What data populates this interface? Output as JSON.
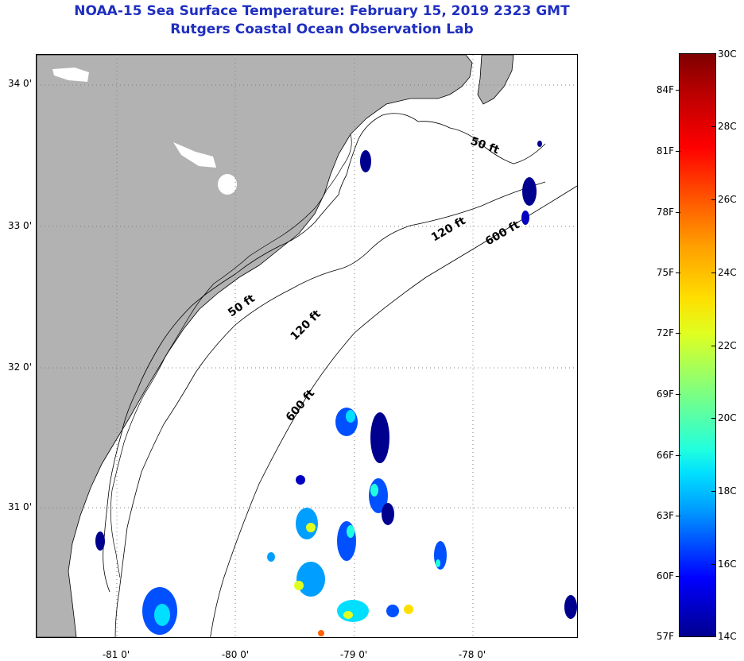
{
  "title": {
    "line1": "NOAA-15 Sea Surface Temperature:  February 15, 2019 2323 GMT",
    "line2": "Rutgers Coastal Ocean Observation Lab"
  },
  "colors": {
    "title": "#1f2fbf",
    "land": "#b2b2b2",
    "ocean": "#ffffff",
    "contour": "#000000",
    "grid": "#808080"
  },
  "latitude_labels": [
    "34 0'",
    "33 0'",
    "32 0'",
    "31 0'"
  ],
  "longitude_labels": [
    "-81 0'",
    "-80 0'",
    "-79 0'",
    "-78 0'"
  ],
  "contour_labels": [
    "50 ft",
    "120 ft",
    "600 ft",
    "50 ft",
    "120 ft",
    "600 ft"
  ],
  "colorbar": {
    "fahrenheit": [
      "84F",
      "81F",
      "78F",
      "75F",
      "72F",
      "69F",
      "66F",
      "63F",
      "60F",
      "57F"
    ],
    "celsius": [
      "30C",
      "28C",
      "26C",
      "24C",
      "22C",
      "20C",
      "18C",
      "16C",
      "14C"
    ]
  }
}
